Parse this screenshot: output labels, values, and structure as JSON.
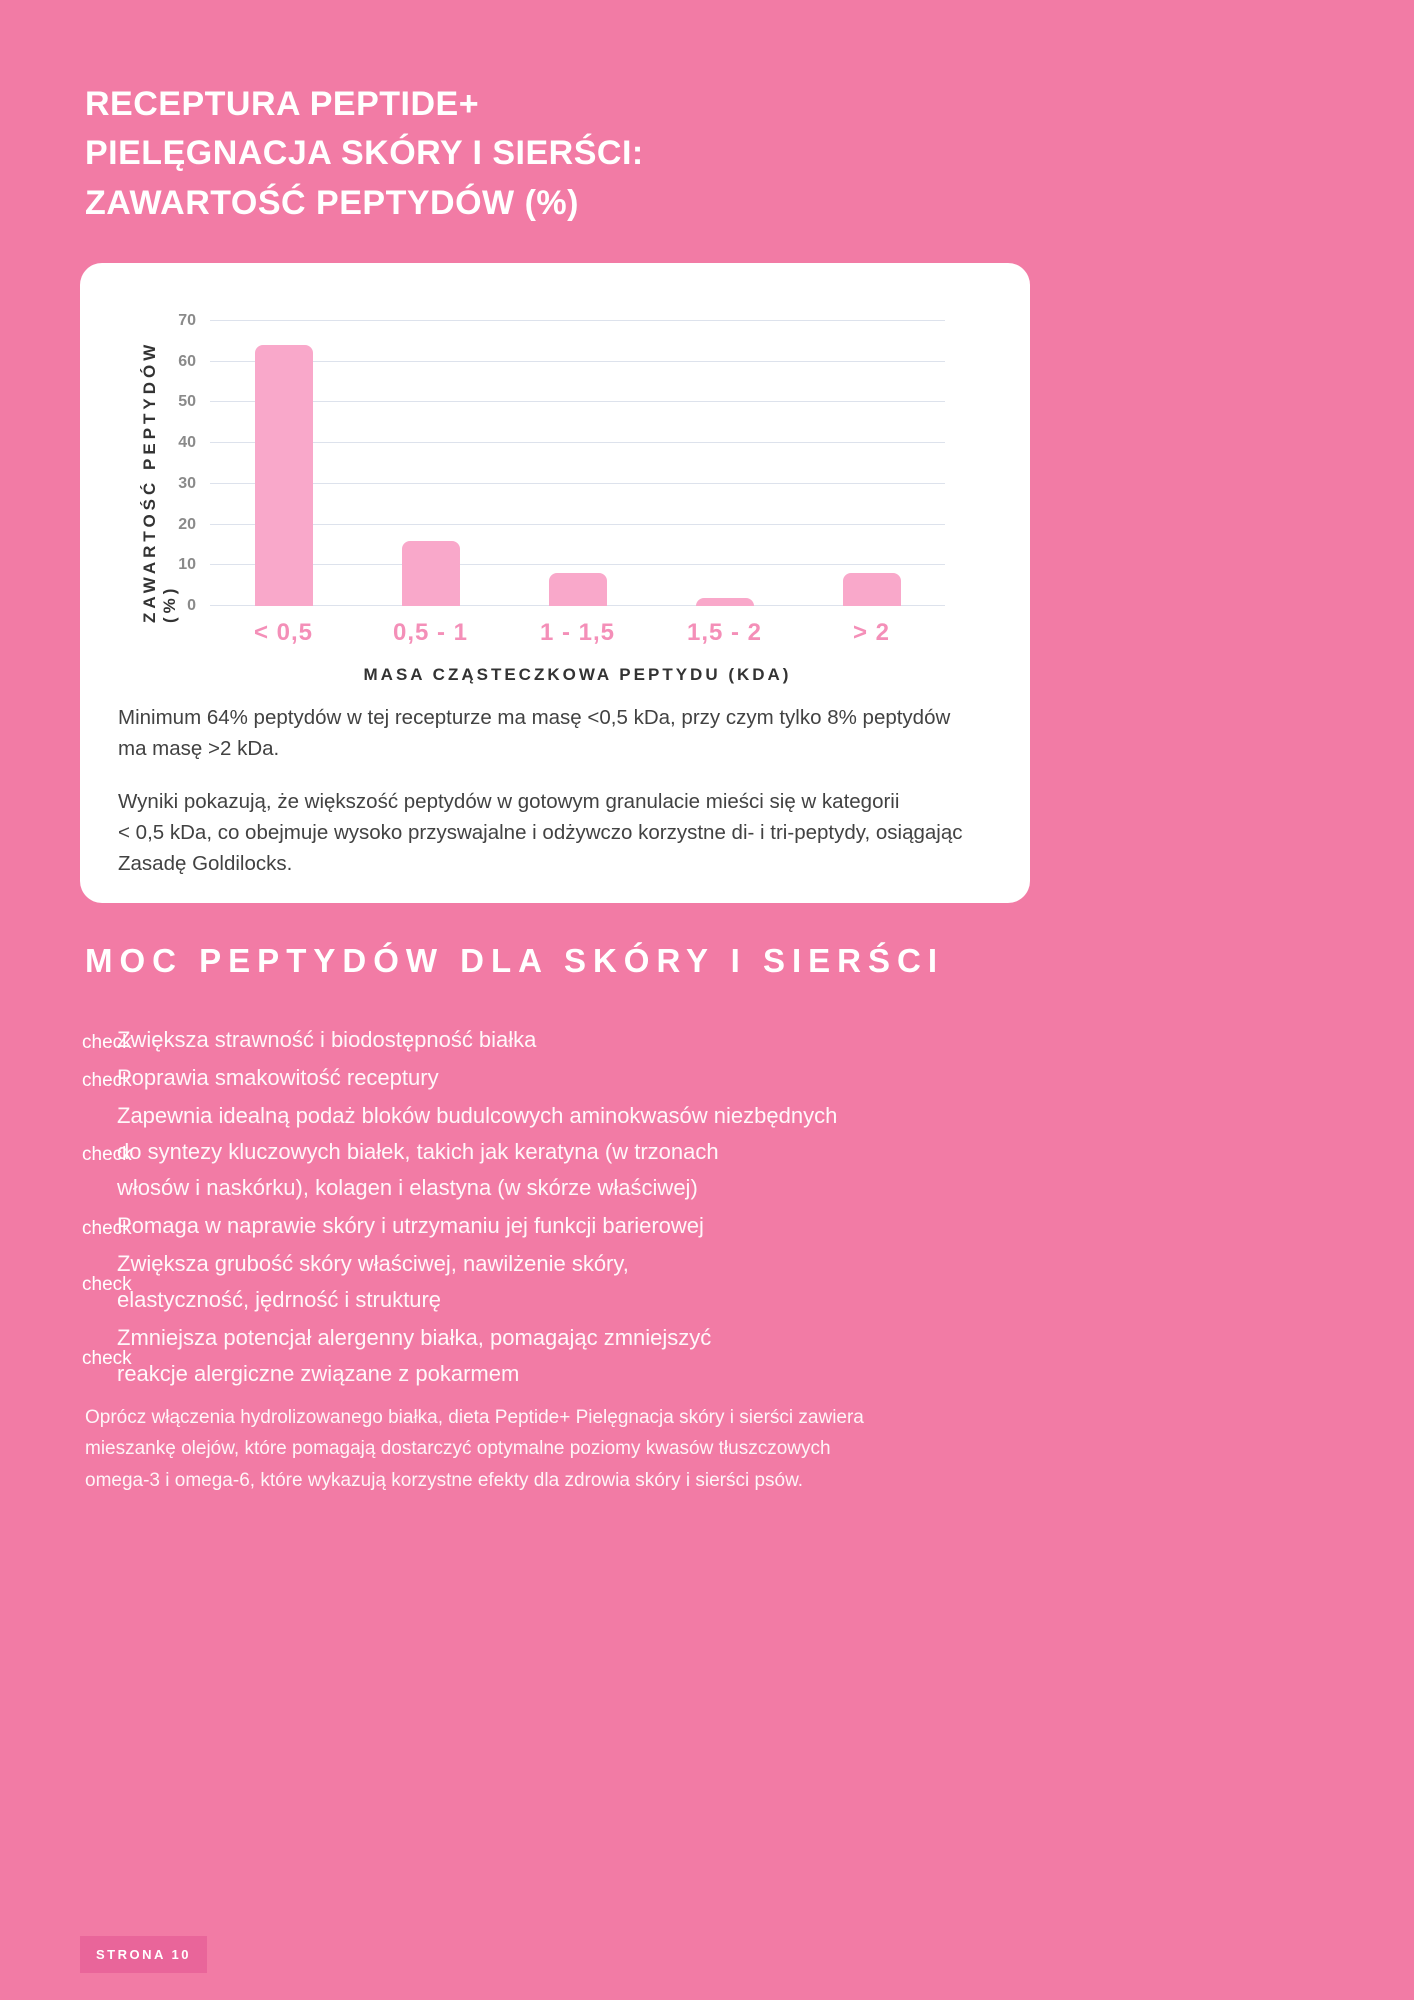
{
  "colors": {
    "bg_pink": "#F27BA5",
    "bar_pink": "#F9A8CA",
    "category_pink": "#F48FB8",
    "badge_pink": "#E9659A",
    "grid_gray": "#DDE2EC",
    "text_dark": "#424242"
  },
  "header": {
    "title_lines": [
      "RECEPTURA PEPTIDE+",
      "PIELĘGNACJA SKÓRY I SIERŚCI:",
      "ZAWARTOŚĆ PEPTYDÓW (%)"
    ]
  },
  "chart_data": {
    "type": "bar",
    "categories": [
      "< 0,5",
      "0,5 - 1",
      "1 - 1,5",
      "1,5 - 2",
      "> 2"
    ],
    "values": [
      64,
      16,
      8,
      2,
      8
    ],
    "xlabel": "MASA CZĄSTECZKOWA PEPTYDU (KDA)",
    "ylabel": "ZAWARTOŚĆ PEPTYDÓW (%)",
    "ylim": [
      0,
      70
    ],
    "yticks": [
      0,
      10,
      20,
      30,
      40,
      50,
      60,
      70
    ],
    "grid": true,
    "legend": false
  },
  "chart_card": {
    "caption_1": "Minimum 64% peptydów w tej recepturze ma masę <0,5 kDa, przy czym tylko 8% peptydów\nma masę >2 kDa.",
    "caption_2": "Wyniki pokazują, że większość peptydów w gotowym granulacie mieści się w kategorii\n< 0,5 kDa, co obejmuje wysoko przyswajalne i odżywczo korzystne di- i tri-peptydy, osiągając\nZasadę Goldilocks."
  },
  "benefits": {
    "heading": "MOC PEPTYDÓW DLA SKÓRY I SIERŚCI",
    "icon_label": "check",
    "items": [
      "Zwiększa strawność i biodostępność białka",
      "Poprawia smakowitość receptury",
      "Zapewnia idealną podaż bloków budulcowych aminokwasów niezbędnych\ndo syntezy kluczowych białek, takich jak keratyna (w trzonach\nwłosów i naskórku), kolagen i elastyna (w skórze właściwej)",
      "Pomaga w naprawie skóry i utrzymaniu jej funkcji barierowej",
      "Zwiększa grubość skóry właściwej, nawilżenie skóry,\nelastyczność, jędrność i strukturę",
      "Zmniejsza potencjał alergenny białka, pomagając zmniejszyć\nreakcje alergiczne związane z pokarmem"
    ]
  },
  "footer": {
    "paragraph": "Oprócz włączenia hydrolizowanego białka, dieta Peptide+ Pielęgnacja skóry i sierści zawiera\nmieszankę olejów, które pomagają dostarczyć optymalne poziomy kwasów tłuszczowych\nomega-3 i omega-6, które wykazują korzystne efekty dla zdrowia skóry i sierści psów.",
    "page_badge": "STRONA 10"
  }
}
